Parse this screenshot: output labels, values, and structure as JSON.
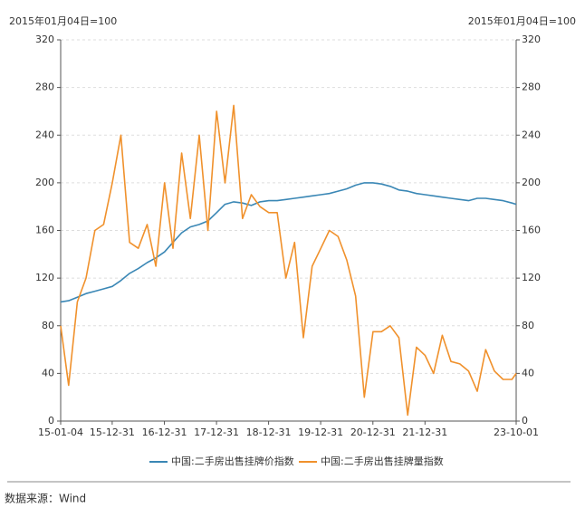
{
  "chart_data": {
    "type": "line",
    "y_label": "2015年01月04日=100",
    "y2_label": "2015年01月04日=100",
    "x": [
      "15-01-04",
      "15-03-01",
      "15-05-01",
      "15-07-01",
      "15-09-01",
      "15-11-01",
      "16-01-01",
      "16-03-01",
      "16-05-01",
      "16-07-01",
      "16-09-01",
      "16-11-01",
      "17-01-01",
      "17-03-01",
      "17-05-01",
      "17-07-01",
      "17-09-01",
      "17-11-01",
      "18-01-01",
      "18-03-01",
      "18-05-01",
      "18-07-01",
      "18-09-01",
      "18-11-01",
      "19-01-01",
      "19-03-01",
      "19-05-01",
      "19-07-01",
      "19-09-01",
      "19-11-01",
      "20-01-01",
      "20-03-01",
      "20-05-01",
      "20-07-01",
      "20-09-01",
      "20-11-01",
      "21-01-01",
      "21-03-01",
      "21-05-01",
      "21-07-01",
      "21-09-01",
      "21-11-01",
      "22-01-01",
      "22-03-01",
      "22-05-01",
      "22-07-01",
      "22-09-01",
      "22-11-01",
      "23-01-01",
      "23-03-01",
      "23-05-01",
      "23-07-01",
      "23-09-01",
      "23-10-01"
    ],
    "xlim": [
      "15-01-04",
      "23-10-01"
    ],
    "xticks": [
      "15-01-04",
      "15-12-31",
      "16-12-31",
      "17-12-31",
      "18-12-31",
      "19-12-31",
      "20-12-31",
      "21-12-31",
      "23-10-01"
    ],
    "ylim": [
      0,
      320
    ],
    "yticks": [
      0,
      40,
      80,
      120,
      160,
      200,
      240,
      280,
      320
    ],
    "y2lim": [
      0,
      320
    ],
    "y2ticks": [
      0,
      40,
      80,
      120,
      160,
      200,
      240,
      280,
      320
    ],
    "grid": true,
    "series": [
      {
        "name": "中国:二手房出售挂牌价指数",
        "color": "#3a87b5",
        "values": [
          100,
          101,
          104,
          107,
          109,
          111,
          113,
          118,
          124,
          128,
          133,
          137,
          142,
          150,
          158,
          163,
          165,
          168,
          175,
          182,
          184,
          183,
          181,
          184,
          185,
          185,
          186,
          187,
          188,
          189,
          190,
          191,
          193,
          195,
          198,
          200,
          200,
          199,
          197,
          194,
          193,
          191,
          190,
          189,
          188,
          187,
          186,
          185,
          187,
          187,
          186,
          185,
          183,
          182
        ]
      },
      {
        "name": "中国:二手房出售挂牌量指数",
        "color": "#f0912c",
        "axis": "y2",
        "values": [
          80,
          30,
          100,
          120,
          160,
          165,
          200,
          240,
          150,
          145,
          165,
          130,
          200,
          145,
          225,
          170,
          240,
          160,
          260,
          200,
          265,
          170,
          190,
          180,
          175,
          175,
          120,
          150,
          70,
          130,
          145,
          160,
          155,
          135,
          105,
          20,
          75,
          75,
          80,
          70,
          5,
          62,
          55,
          40,
          72,
          50,
          48,
          42,
          25,
          60,
          42,
          35,
          35,
          40
        ]
      }
    ],
    "source": "数据来源：Wind"
  }
}
